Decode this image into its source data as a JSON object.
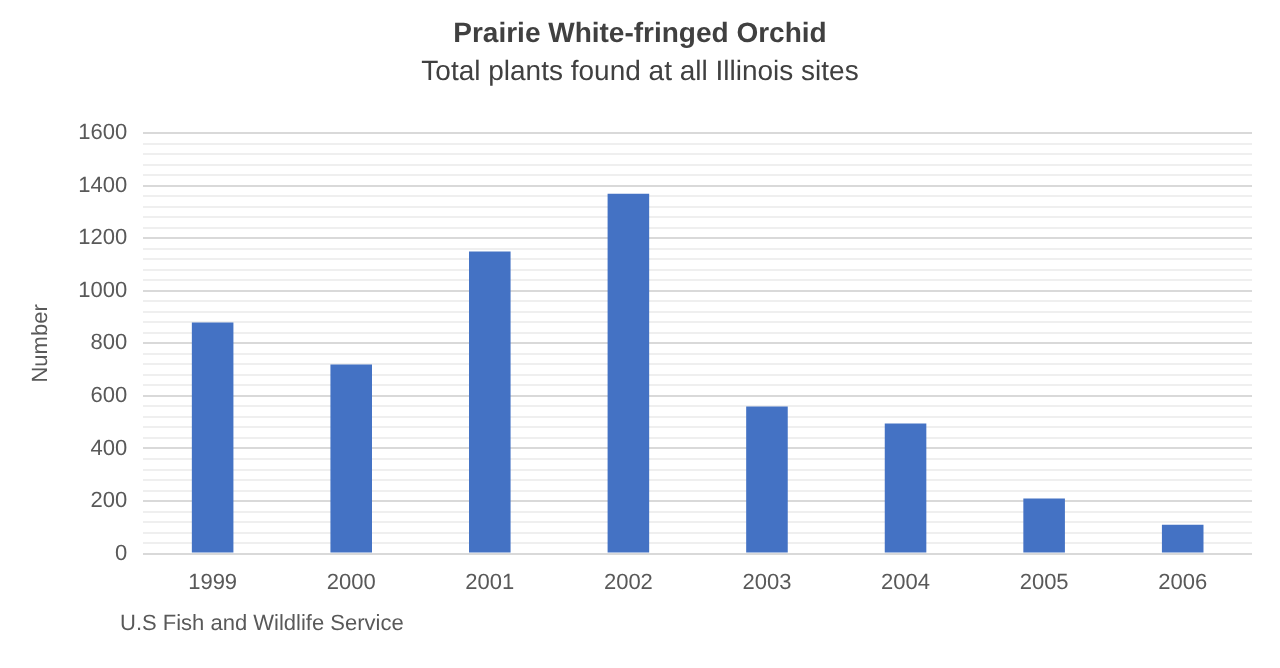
{
  "chart_data": {
    "type": "bar",
    "title": "Prairie White-fringed Orchid",
    "subtitle": "Total plants found at all Illinois sites",
    "ylabel": "Number",
    "categories": [
      "1999",
      "2000",
      "2001",
      "2002",
      "2003",
      "2004",
      "2005",
      "2006"
    ],
    "values": [
      880,
      720,
      1150,
      1370,
      560,
      495,
      210,
      110
    ],
    "color": "#4472c4",
    "ylim": [
      0,
      1600
    ],
    "yticks": [
      0,
      {
        "value": 40,
        "label": null
      },
      {
        "value": 80,
        "label": null
      },
      {
        "value": 120,
        "label": null
      },
      {
        "value": 160,
        "label": null
      },
      200,
      {
        "value": 240,
        "label": null
      },
      {
        "value": 280,
        "label": null
      },
      {
        "value": 320,
        "label": null
      },
      {
        "value": 360,
        "label": null
      },
      400,
      {
        "value": 440,
        "label": null
      },
      {
        "value": 480,
        "label": null
      },
      {
        "value": 520,
        "label": null
      },
      {
        "value": 560,
        "label": null
      },
      600,
      {
        "value": 640,
        "label": null
      },
      {
        "value": 680,
        "label": null
      },
      {
        "value": 720,
        "label": null
      },
      {
        "value": 760,
        "label": null
      },
      800,
      {
        "value": 840,
        "label": null
      },
      {
        "value": 880,
        "label": null
      },
      {
        "value": 920,
        "label": null
      },
      {
        "value": 960,
        "label": null
      },
      1000,
      {
        "value": 1040,
        "label": null
      },
      {
        "value": 1080,
        "label": null
      },
      {
        "value": 1120,
        "label": null
      },
      {
        "value": 1160,
        "label": null
      },
      1200,
      {
        "value": 1240,
        "label": null
      },
      {
        "value": 1280,
        "label": null
      },
      {
        "value": 1320,
        "label": null
      },
      {
        "value": 1360,
        "label": null
      },
      1400,
      {
        "value": 1440,
        "label": null
      },
      {
        "value": 1480,
        "label": null
      },
      {
        "value": 1520,
        "label": null
      },
      {
        "value": 1560,
        "label": null
      },
      1600
    ],
    "grid": "y",
    "legend": false,
    "annotations": [
      "U.S Fish and Wildlife Service"
    ]
  }
}
